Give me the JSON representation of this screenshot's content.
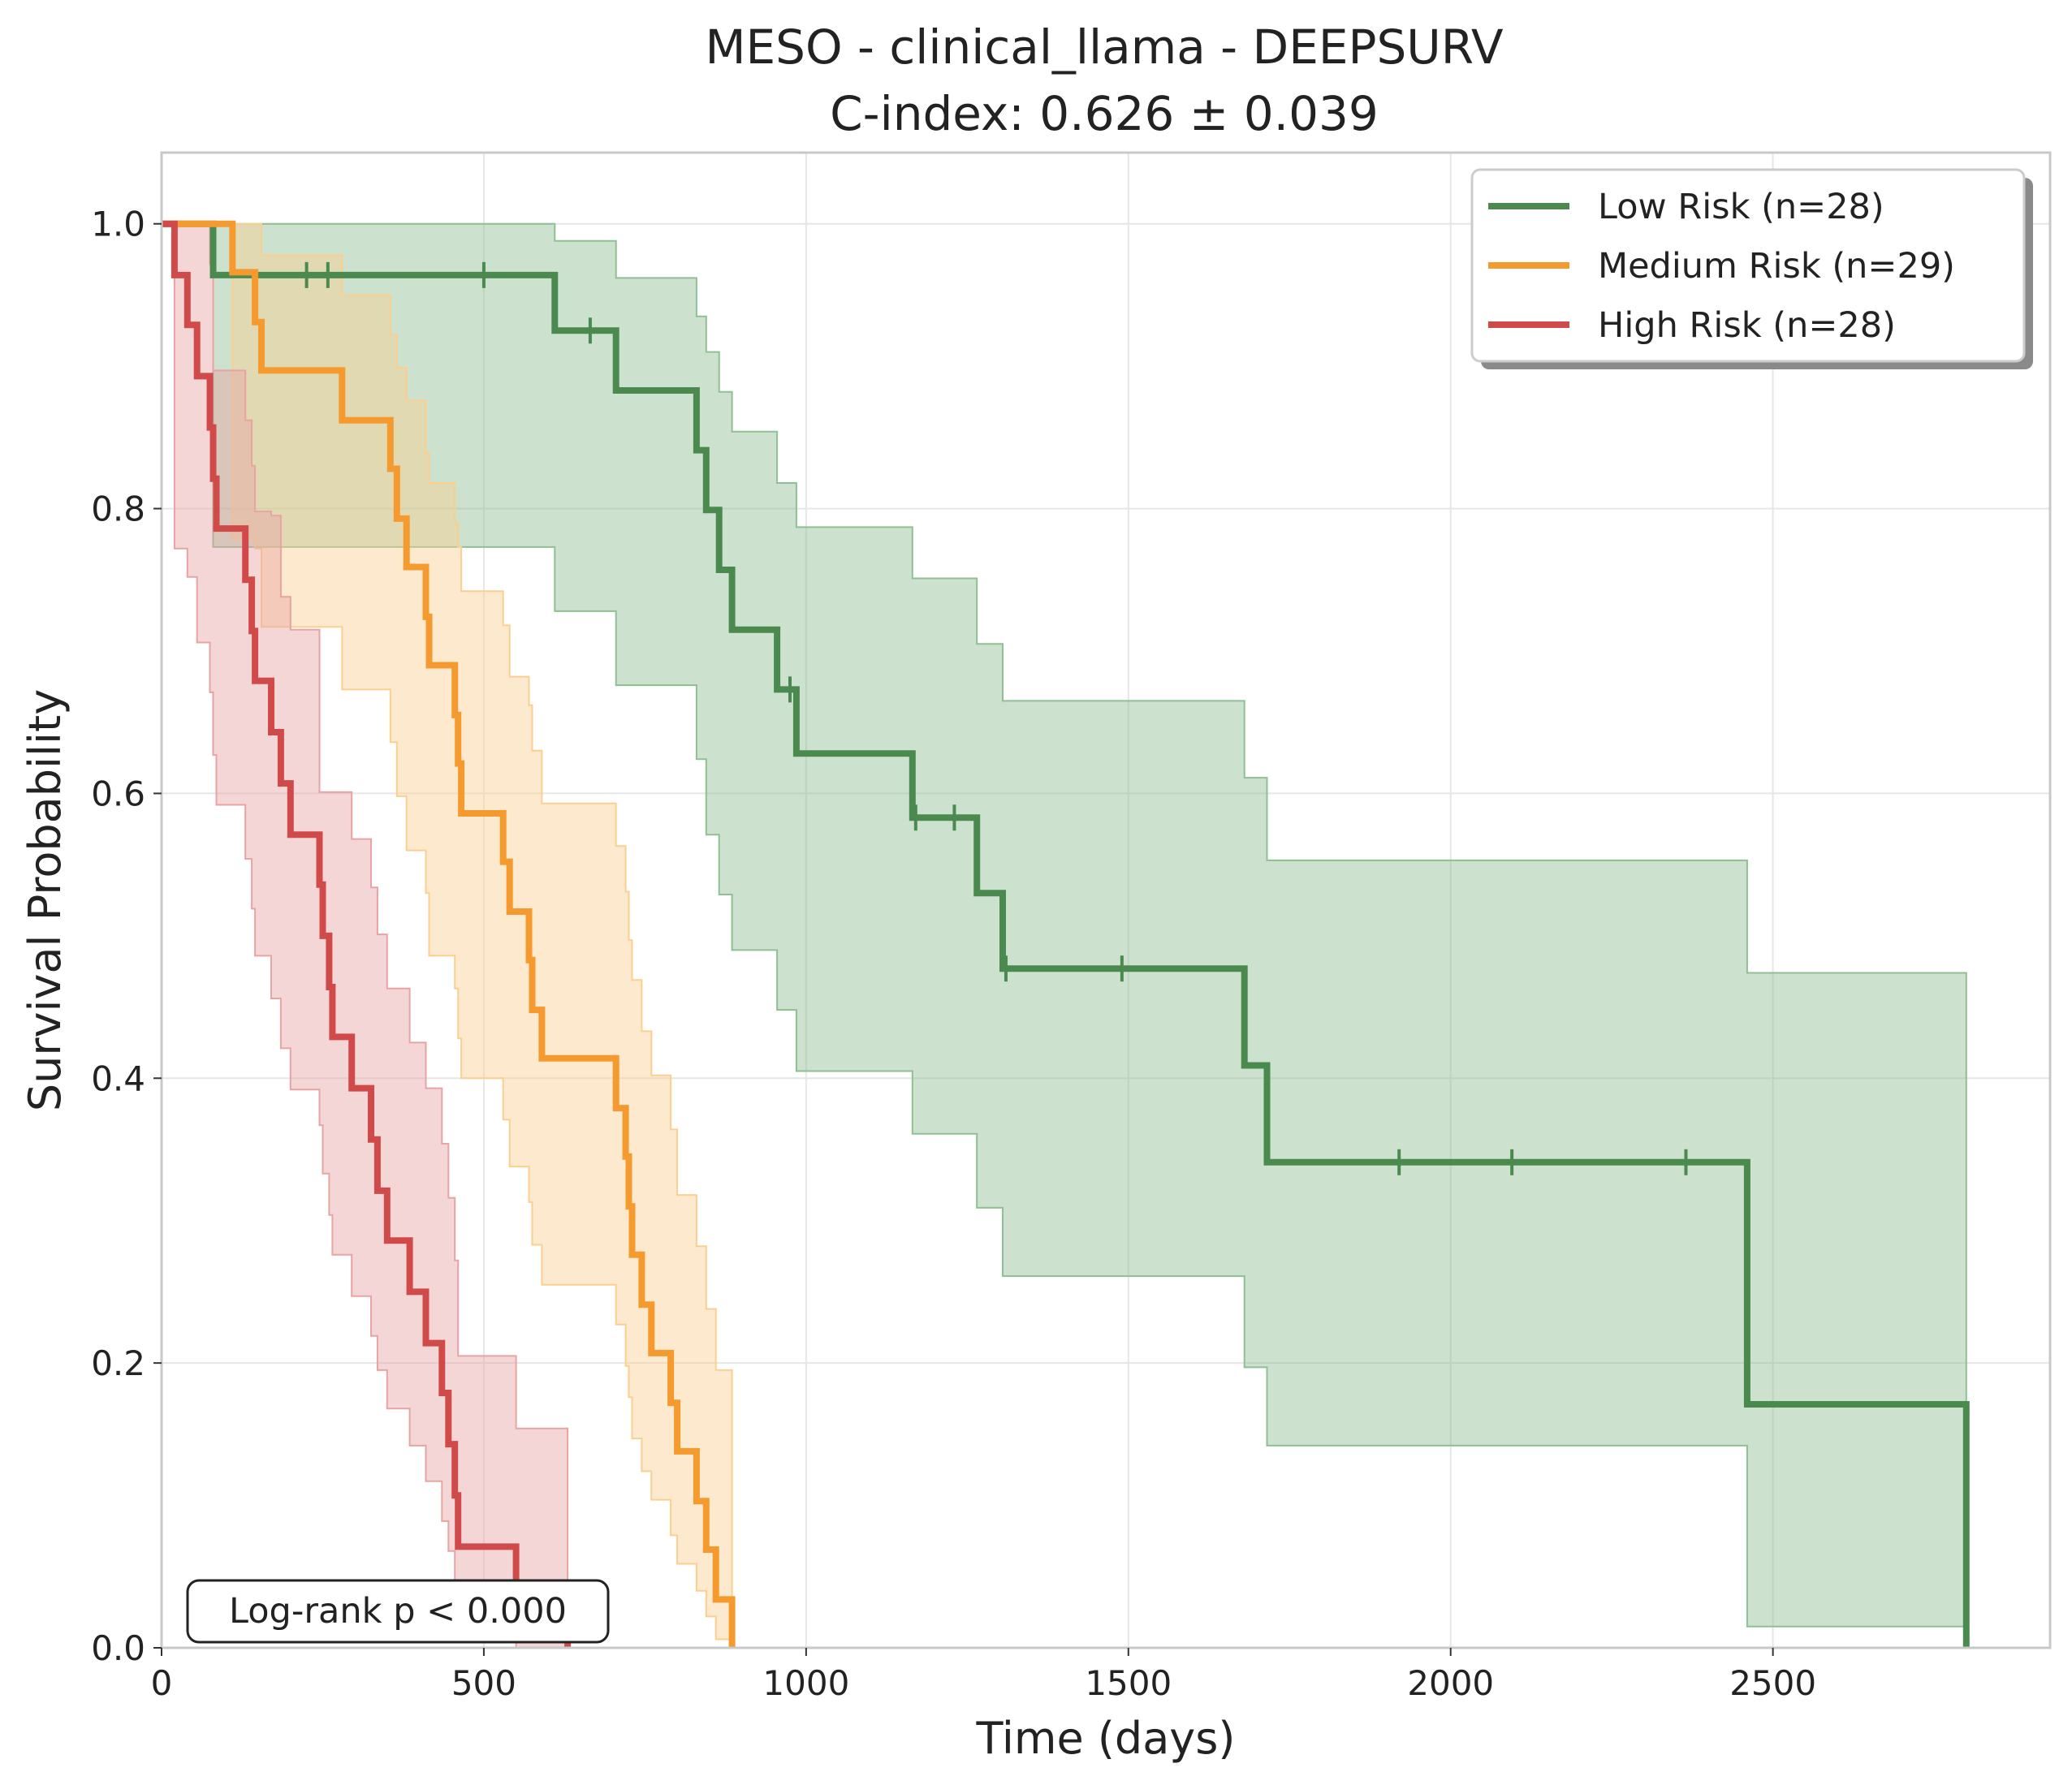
{
  "chart_data": {
    "type": "line",
    "subtype": "kaplan-meier",
    "title": "MESO - clinical_llama - DEEPSURV",
    "subtitle": "C-index: 0.626 ± 0.039",
    "xlabel": "Time (days)",
    "ylabel": "Survival Probability",
    "xlim": [
      0,
      2930
    ],
    "ylim": [
      0,
      1.05
    ],
    "xticks": [
      0,
      500,
      1000,
      1500,
      2000,
      2500
    ],
    "xtick_labels": [
      "0",
      "500",
      "1000",
      "1500",
      "2000",
      "2500"
    ],
    "yticks": [
      0,
      0.2,
      0.4,
      0.6,
      0.8,
      1.0
    ],
    "ytick_labels": [
      "0.0",
      "0.2",
      "0.4",
      "0.6",
      "0.8",
      "1.0"
    ],
    "grid": true,
    "legend_position": "top-right",
    "annotation": "Log-rank p < 0.000",
    "series": [
      {
        "name": "Low Risk (n=28)",
        "color": "#4a8a4f",
        "band_color": "#8fbf93",
        "steps": [
          {
            "x": 0,
            "y": 1.0
          },
          {
            "x": 80,
            "y": 0.964
          },
          {
            "x": 610,
            "y": 0.925
          },
          {
            "x": 705,
            "y": 0.883
          },
          {
            "x": 830,
            "y": 0.841
          },
          {
            "x": 845,
            "y": 0.799
          },
          {
            "x": 865,
            "y": 0.757
          },
          {
            "x": 885,
            "y": 0.715
          },
          {
            "x": 955,
            "y": 0.673
          },
          {
            "x": 985,
            "y": 0.628
          },
          {
            "x": 1165,
            "y": 0.583
          },
          {
            "x": 1265,
            "y": 0.53
          },
          {
            "x": 1305,
            "y": 0.477
          },
          {
            "x": 1680,
            "y": 0.409
          },
          {
            "x": 1715,
            "y": 0.341
          },
          {
            "x": 2460,
            "y": 0.171
          },
          {
            "x": 2800,
            "y": 0.0
          }
        ],
        "ci_lower": [
          {
            "x": 0,
            "y": 1.0
          },
          {
            "x": 80,
            "y": 0.773
          },
          {
            "x": 610,
            "y": 0.728
          },
          {
            "x": 705,
            "y": 0.676
          },
          {
            "x": 830,
            "y": 0.624
          },
          {
            "x": 845,
            "y": 0.571
          },
          {
            "x": 865,
            "y": 0.529
          },
          {
            "x": 885,
            "y": 0.49
          },
          {
            "x": 955,
            "y": 0.448
          },
          {
            "x": 985,
            "y": 0.405
          },
          {
            "x": 1165,
            "y": 0.361
          },
          {
            "x": 1265,
            "y": 0.309
          },
          {
            "x": 1305,
            "y": 0.261
          },
          {
            "x": 1680,
            "y": 0.197
          },
          {
            "x": 1715,
            "y": 0.142
          },
          {
            "x": 2460,
            "y": 0.015
          },
          {
            "x": 2800,
            "y": 0.015
          }
        ],
        "ci_upper": [
          {
            "x": 0,
            "y": 1.0
          },
          {
            "x": 80,
            "y": 1.0
          },
          {
            "x": 610,
            "y": 0.988
          },
          {
            "x": 705,
            "y": 0.962
          },
          {
            "x": 830,
            "y": 0.935
          },
          {
            "x": 845,
            "y": 0.91
          },
          {
            "x": 865,
            "y": 0.882
          },
          {
            "x": 885,
            "y": 0.854
          },
          {
            "x": 955,
            "y": 0.818
          },
          {
            "x": 985,
            "y": 0.787
          },
          {
            "x": 1165,
            "y": 0.751
          },
          {
            "x": 1265,
            "y": 0.705
          },
          {
            "x": 1305,
            "y": 0.665
          },
          {
            "x": 1680,
            "y": 0.611
          },
          {
            "x": 1715,
            "y": 0.553
          },
          {
            "x": 2460,
            "y": 0.474
          },
          {
            "x": 2800,
            "y": 0.474
          }
        ],
        "censored": [
          {
            "x": 225,
            "y": 0.964
          },
          {
            "x": 258,
            "y": 0.964
          },
          {
            "x": 500,
            "y": 0.964
          },
          {
            "x": 665,
            "y": 0.925
          },
          {
            "x": 975,
            "y": 0.673
          },
          {
            "x": 1170,
            "y": 0.583
          },
          {
            "x": 1230,
            "y": 0.583
          },
          {
            "x": 1310,
            "y": 0.477
          },
          {
            "x": 1490,
            "y": 0.477
          },
          {
            "x": 1920,
            "y": 0.341
          },
          {
            "x": 2095,
            "y": 0.341
          },
          {
            "x": 2365,
            "y": 0.341
          }
        ]
      },
      {
        "name": "Medium Risk (n=29)",
        "color": "#f59a2e",
        "band_color": "#fbcf90",
        "steps": [
          {
            "x": 0,
            "y": 1.0
          },
          {
            "x": 110,
            "y": 0.966
          },
          {
            "x": 145,
            "y": 0.931
          },
          {
            "x": 155,
            "y": 0.897
          },
          {
            "x": 280,
            "y": 0.862
          },
          {
            "x": 355,
            "y": 0.828
          },
          {
            "x": 365,
            "y": 0.793
          },
          {
            "x": 380,
            "y": 0.759
          },
          {
            "x": 410,
            "y": 0.724
          },
          {
            "x": 415,
            "y": 0.69
          },
          {
            "x": 455,
            "y": 0.655
          },
          {
            "x": 460,
            "y": 0.621
          },
          {
            "x": 465,
            "y": 0.586
          },
          {
            "x": 530,
            "y": 0.552
          },
          {
            "x": 540,
            "y": 0.517
          },
          {
            "x": 570,
            "y": 0.483
          },
          {
            "x": 575,
            "y": 0.448
          },
          {
            "x": 590,
            "y": 0.414
          },
          {
            "x": 705,
            "y": 0.379
          },
          {
            "x": 720,
            "y": 0.345
          },
          {
            "x": 725,
            "y": 0.31
          },
          {
            "x": 730,
            "y": 0.276
          },
          {
            "x": 745,
            "y": 0.241
          },
          {
            "x": 760,
            "y": 0.207
          },
          {
            "x": 790,
            "y": 0.172
          },
          {
            "x": 800,
            "y": 0.138
          },
          {
            "x": 830,
            "y": 0.103
          },
          {
            "x": 845,
            "y": 0.069
          },
          {
            "x": 860,
            "y": 0.034
          },
          {
            "x": 885,
            "y": 0.0
          }
        ],
        "ci_lower": [
          {
            "x": 0,
            "y": 1.0
          },
          {
            "x": 110,
            "y": 0.779
          },
          {
            "x": 145,
            "y": 0.772
          },
          {
            "x": 155,
            "y": 0.717
          },
          {
            "x": 280,
            "y": 0.673
          },
          {
            "x": 355,
            "y": 0.636
          },
          {
            "x": 365,
            "y": 0.598
          },
          {
            "x": 380,
            "y": 0.56
          },
          {
            "x": 410,
            "y": 0.53
          },
          {
            "x": 415,
            "y": 0.486
          },
          {
            "x": 455,
            "y": 0.463
          },
          {
            "x": 460,
            "y": 0.428
          },
          {
            "x": 465,
            "y": 0.4
          },
          {
            "x": 530,
            "y": 0.371
          },
          {
            "x": 540,
            "y": 0.338
          },
          {
            "x": 570,
            "y": 0.313
          },
          {
            "x": 575,
            "y": 0.283
          },
          {
            "x": 590,
            "y": 0.255
          },
          {
            "x": 705,
            "y": 0.227
          },
          {
            "x": 720,
            "y": 0.198
          },
          {
            "x": 725,
            "y": 0.176
          },
          {
            "x": 730,
            "y": 0.147
          },
          {
            "x": 745,
            "y": 0.124
          },
          {
            "x": 760,
            "y": 0.104
          },
          {
            "x": 790,
            "y": 0.079
          },
          {
            "x": 800,
            "y": 0.059
          },
          {
            "x": 830,
            "y": 0.04
          },
          {
            "x": 845,
            "y": 0.022
          },
          {
            "x": 860,
            "y": 0.006
          },
          {
            "x": 885,
            "y": 0.0
          }
        ],
        "ci_upper": [
          {
            "x": 0,
            "y": 1.0
          },
          {
            "x": 110,
            "y": 1.0
          },
          {
            "x": 145,
            "y": 1.0
          },
          {
            "x": 155,
            "y": 0.978
          },
          {
            "x": 280,
            "y": 0.95
          },
          {
            "x": 355,
            "y": 0.922
          },
          {
            "x": 365,
            "y": 0.899
          },
          {
            "x": 380,
            "y": 0.876
          },
          {
            "x": 410,
            "y": 0.839
          },
          {
            "x": 415,
            "y": 0.818
          },
          {
            "x": 455,
            "y": 0.79
          },
          {
            "x": 460,
            "y": 0.773
          },
          {
            "x": 465,
            "y": 0.742
          },
          {
            "x": 530,
            "y": 0.718
          },
          {
            "x": 540,
            "y": 0.682
          },
          {
            "x": 570,
            "y": 0.662
          },
          {
            "x": 575,
            "y": 0.63
          },
          {
            "x": 590,
            "y": 0.593
          },
          {
            "x": 705,
            "y": 0.563
          },
          {
            "x": 720,
            "y": 0.531
          },
          {
            "x": 725,
            "y": 0.497
          },
          {
            "x": 730,
            "y": 0.469
          },
          {
            "x": 745,
            "y": 0.433
          },
          {
            "x": 760,
            "y": 0.402
          },
          {
            "x": 790,
            "y": 0.364
          },
          {
            "x": 800,
            "y": 0.318
          },
          {
            "x": 830,
            "y": 0.282
          },
          {
            "x": 845,
            "y": 0.238
          },
          {
            "x": 860,
            "y": 0.195
          },
          {
            "x": 885,
            "y": 0.0
          }
        ],
        "censored": []
      },
      {
        "name": "High Risk (n=28)",
        "color": "#d14a4a",
        "band_color": "#e8a3a3",
        "steps": [
          {
            "x": 0,
            "y": 1.0
          },
          {
            "x": 20,
            "y": 0.964
          },
          {
            "x": 40,
            "y": 0.929
          },
          {
            "x": 55,
            "y": 0.893
          },
          {
            "x": 75,
            "y": 0.857
          },
          {
            "x": 80,
            "y": 0.821
          },
          {
            "x": 85,
            "y": 0.786
          },
          {
            "x": 130,
            "y": 0.75
          },
          {
            "x": 140,
            "y": 0.714
          },
          {
            "x": 145,
            "y": 0.679
          },
          {
            "x": 170,
            "y": 0.643
          },
          {
            "x": 185,
            "y": 0.607
          },
          {
            "x": 200,
            "y": 0.571
          },
          {
            "x": 245,
            "y": 0.536
          },
          {
            "x": 250,
            "y": 0.5
          },
          {
            "x": 260,
            "y": 0.464
          },
          {
            "x": 265,
            "y": 0.429
          },
          {
            "x": 295,
            "y": 0.393
          },
          {
            "x": 325,
            "y": 0.357
          },
          {
            "x": 335,
            "y": 0.321
          },
          {
            "x": 350,
            "y": 0.286
          },
          {
            "x": 385,
            "y": 0.25
          },
          {
            "x": 410,
            "y": 0.214
          },
          {
            "x": 435,
            "y": 0.179
          },
          {
            "x": 445,
            "y": 0.143
          },
          {
            "x": 455,
            "y": 0.107
          },
          {
            "x": 460,
            "y": 0.071
          },
          {
            "x": 550,
            "y": 0.036
          },
          {
            "x": 630,
            "y": 0.0
          }
        ],
        "ci_lower": [
          {
            "x": 0,
            "y": 1.0
          },
          {
            "x": 20,
            "y": 0.772
          },
          {
            "x": 40,
            "y": 0.752
          },
          {
            "x": 55,
            "y": 0.706
          },
          {
            "x": 75,
            "y": 0.671
          },
          {
            "x": 80,
            "y": 0.627
          },
          {
            "x": 85,
            "y": 0.592
          },
          {
            "x": 130,
            "y": 0.554
          },
          {
            "x": 140,
            "y": 0.519
          },
          {
            "x": 145,
            "y": 0.486
          },
          {
            "x": 170,
            "y": 0.456
          },
          {
            "x": 185,
            "y": 0.421
          },
          {
            "x": 200,
            "y": 0.392
          },
          {
            "x": 245,
            "y": 0.367
          },
          {
            "x": 250,
            "y": 0.333
          },
          {
            "x": 260,
            "y": 0.304
          },
          {
            "x": 265,
            "y": 0.276
          },
          {
            "x": 295,
            "y": 0.247
          },
          {
            "x": 325,
            "y": 0.219
          },
          {
            "x": 335,
            "y": 0.195
          },
          {
            "x": 350,
            "y": 0.168
          },
          {
            "x": 385,
            "y": 0.142
          },
          {
            "x": 410,
            "y": 0.117
          },
          {
            "x": 435,
            "y": 0.089
          },
          {
            "x": 445,
            "y": 0.068
          },
          {
            "x": 455,
            "y": 0.046
          },
          {
            "x": 460,
            "y": 0.023
          },
          {
            "x": 550,
            "y": 0.0
          },
          {
            "x": 630,
            "y": 0.0
          }
        ],
        "ci_upper": [
          {
            "x": 0,
            "y": 1.0
          },
          {
            "x": 20,
            "y": 1.0
          },
          {
            "x": 40,
            "y": 1.0
          },
          {
            "x": 55,
            "y": 1.0
          },
          {
            "x": 75,
            "y": 0.972
          },
          {
            "x": 80,
            "y": 0.897
          },
          {
            "x": 85,
            "y": 0.897
          },
          {
            "x": 130,
            "y": 0.862
          },
          {
            "x": 140,
            "y": 0.83
          },
          {
            "x": 145,
            "y": 0.798
          },
          {
            "x": 170,
            "y": 0.795
          },
          {
            "x": 185,
            "y": 0.738
          },
          {
            "x": 200,
            "y": 0.715
          },
          {
            "x": 245,
            "y": 0.601
          },
          {
            "x": 250,
            "y": 0.601
          },
          {
            "x": 260,
            "y": 0.601
          },
          {
            "x": 265,
            "y": 0.601
          },
          {
            "x": 295,
            "y": 0.568
          },
          {
            "x": 325,
            "y": 0.534
          },
          {
            "x": 335,
            "y": 0.501
          },
          {
            "x": 350,
            "y": 0.463
          },
          {
            "x": 385,
            "y": 0.425
          },
          {
            "x": 410,
            "y": 0.393
          },
          {
            "x": 435,
            "y": 0.354
          },
          {
            "x": 445,
            "y": 0.316
          },
          {
            "x": 455,
            "y": 0.272
          },
          {
            "x": 460,
            "y": 0.205
          },
          {
            "x": 550,
            "y": 0.154
          },
          {
            "x": 630,
            "y": 0.0
          }
        ],
        "censored": []
      }
    ]
  }
}
